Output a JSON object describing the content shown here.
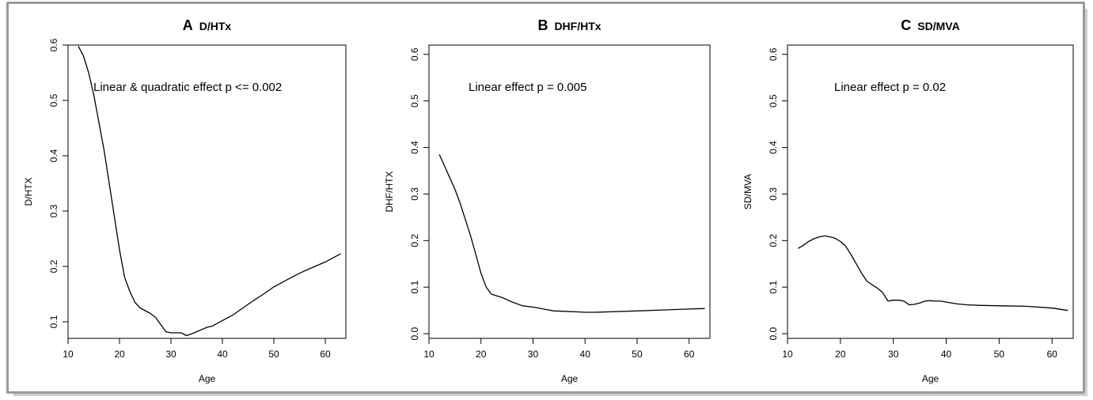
{
  "chart_data": [
    {
      "type": "line",
      "panel_letter": "A",
      "title": "D/HTx",
      "xlabel": "Age",
      "ylabel": "D/HTX",
      "xlim": [
        10,
        64
      ],
      "ylim": [
        0.07,
        0.6
      ],
      "xticks": [
        10,
        20,
        30,
        40,
        50,
        60
      ],
      "yticks": [
        0.1,
        0.2,
        0.3,
        0.4,
        0.5,
        0.6
      ],
      "annotation": "Linear & quadratic effect p <= 0.002",
      "x": [
        12,
        13,
        14,
        15,
        16,
        17,
        18,
        19,
        20,
        21,
        22,
        23,
        24,
        25,
        26,
        27,
        28,
        29,
        30,
        31,
        32,
        33,
        34,
        35,
        36,
        37,
        38,
        40,
        42,
        44,
        46,
        48,
        50,
        52,
        54,
        56,
        58,
        60,
        62,
        63
      ],
      "y": [
        0.598,
        0.58,
        0.55,
        0.51,
        0.46,
        0.41,
        0.35,
        0.29,
        0.23,
        0.18,
        0.155,
        0.135,
        0.125,
        0.12,
        0.115,
        0.108,
        0.095,
        0.082,
        0.08,
        0.08,
        0.08,
        0.075,
        0.078,
        0.082,
        0.086,
        0.09,
        0.092,
        0.102,
        0.112,
        0.125,
        0.138,
        0.15,
        0.163,
        0.173,
        0.183,
        0.192,
        0.2,
        0.208,
        0.218,
        0.223
      ]
    },
    {
      "type": "line",
      "panel_letter": "B",
      "title": "DHF/HTx",
      "xlabel": "Age",
      "ylabel": "DHF/HTX",
      "xlim": [
        10,
        64
      ],
      "ylim": [
        -0.01,
        0.62
      ],
      "xticks": [
        10,
        20,
        30,
        40,
        50,
        60
      ],
      "yticks": [
        0.0,
        0.1,
        0.2,
        0.3,
        0.4,
        0.5,
        0.6
      ],
      "annotation": "Linear effect p = 0.005",
      "x": [
        12,
        13,
        14,
        15,
        16,
        17,
        18,
        19,
        20,
        21,
        22,
        24,
        26,
        28,
        30,
        32,
        34,
        36,
        38,
        40,
        42,
        45,
        50,
        55,
        60,
        63
      ],
      "y": [
        0.385,
        0.36,
        0.335,
        0.31,
        0.28,
        0.245,
        0.21,
        0.17,
        0.13,
        0.1,
        0.085,
        0.078,
        0.068,
        0.06,
        0.057,
        0.053,
        0.049,
        0.048,
        0.047,
        0.046,
        0.046,
        0.047,
        0.049,
        0.051,
        0.053,
        0.054
      ]
    },
    {
      "type": "line",
      "panel_letter": "C",
      "title": "SD/MVA",
      "xlabel": "Age",
      "ylabel": "SD/MVA",
      "xlim": [
        10,
        64
      ],
      "ylim": [
        -0.01,
        0.62
      ],
      "xticks": [
        10,
        20,
        30,
        40,
        50,
        60
      ],
      "yticks": [
        0.0,
        0.1,
        0.2,
        0.3,
        0.4,
        0.5,
        0.6
      ],
      "annotation": "Linear effect p = 0.02",
      "x": [
        12,
        13,
        14,
        15,
        16,
        17,
        18,
        19,
        20,
        21,
        22,
        23,
        24,
        25,
        26,
        27,
        28,
        29,
        30,
        31,
        32,
        33,
        34,
        35,
        36,
        37,
        38,
        39,
        40,
        42,
        44,
        46,
        50,
        55,
        60,
        63
      ],
      "y": [
        0.183,
        0.19,
        0.198,
        0.204,
        0.208,
        0.21,
        0.208,
        0.205,
        0.198,
        0.188,
        0.17,
        0.15,
        0.13,
        0.113,
        0.105,
        0.098,
        0.088,
        0.07,
        0.072,
        0.072,
        0.07,
        0.062,
        0.063,
        0.066,
        0.07,
        0.071,
        0.07,
        0.07,
        0.068,
        0.064,
        0.062,
        0.061,
        0.06,
        0.059,
        0.055,
        0.05
      ]
    }
  ]
}
